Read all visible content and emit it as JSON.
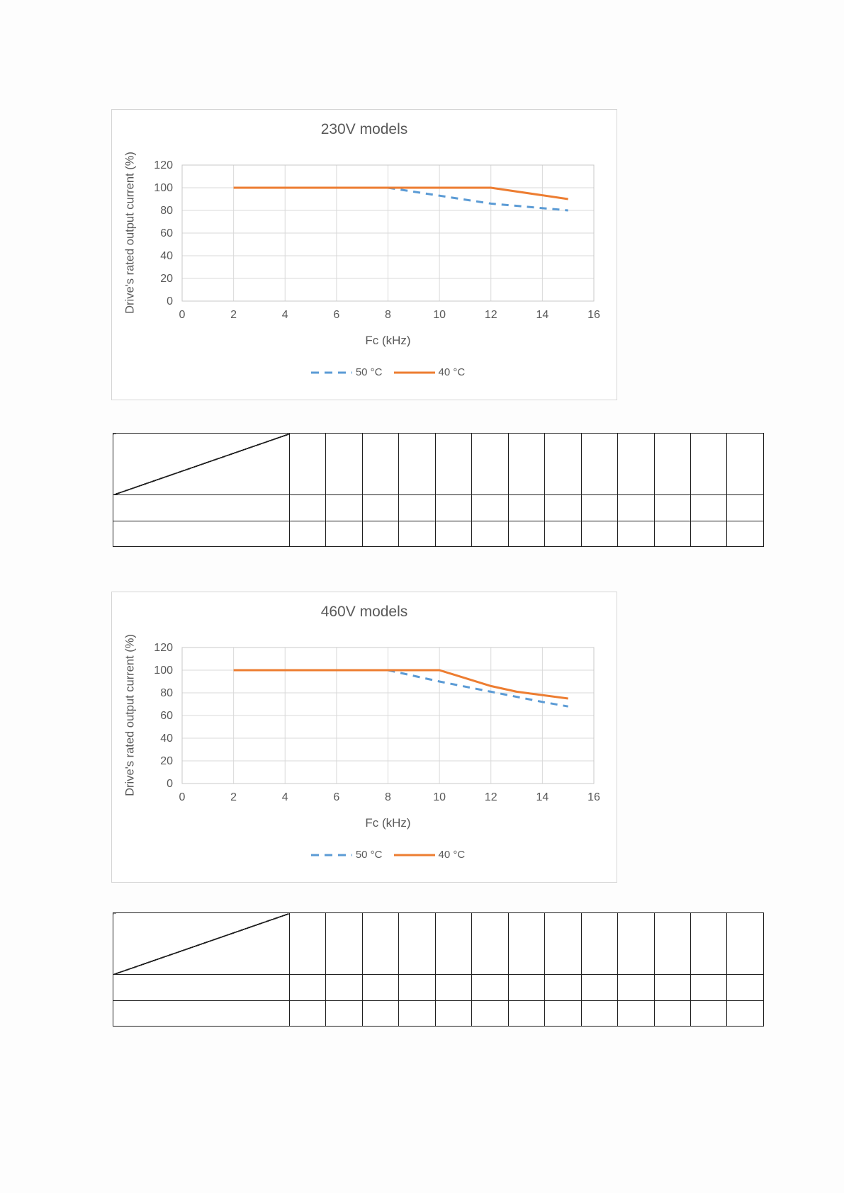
{
  "page": {
    "background": "#fdfdfd",
    "text_color": "#595959",
    "grid_color": "#d9d9d9",
    "table_border_color": "#1f1f1f"
  },
  "chart_data": [
    {
      "type": "line",
      "title": "230V models",
      "xlabel": "Fc (kHz)",
      "ylabel": "Drive's rated output current (%)",
      "xlim": [
        0,
        16
      ],
      "ylim": [
        0,
        120
      ],
      "x_ticks": [
        0,
        2,
        4,
        6,
        8,
        10,
        12,
        14,
        16
      ],
      "y_ticks": [
        0,
        20,
        40,
        60,
        80,
        100,
        120
      ],
      "grid": true,
      "legend_position": "bottom",
      "series": [
        {
          "name": "50 °C",
          "color": "#5B9BD5",
          "line_style": "dashed",
          "points": [
            [
              8,
              100
            ],
            [
              10,
              93
            ],
            [
              12,
              86
            ],
            [
              15,
              80
            ]
          ]
        },
        {
          "name": "40 °C",
          "color": "#ED7D31",
          "line_style": "solid",
          "points": [
            [
              2,
              100
            ],
            [
              12,
              100
            ],
            [
              15,
              90
            ]
          ]
        }
      ]
    },
    {
      "type": "line",
      "title": "460V models",
      "xlabel": "Fc (kHz)",
      "ylabel": "Drive's rated output current (%)",
      "xlim": [
        0,
        16
      ],
      "ylim": [
        0,
        120
      ],
      "x_ticks": [
        0,
        2,
        4,
        6,
        8,
        10,
        12,
        14,
        16
      ],
      "y_ticks": [
        0,
        20,
        40,
        60,
        80,
        100,
        120
      ],
      "grid": true,
      "legend_position": "bottom",
      "series": [
        {
          "name": "50 °C",
          "color": "#5B9BD5",
          "line_style": "dashed",
          "points": [
            [
              8,
              100
            ],
            [
              10,
              90
            ],
            [
              12,
              81
            ],
            [
              14,
              72
            ],
            [
              15,
              68
            ]
          ]
        },
        {
          "name": "40 °C",
          "color": "#ED7D31",
          "line_style": "solid",
          "points": [
            [
              2,
              100
            ],
            [
              10,
              100
            ],
            [
              12,
              86
            ],
            [
              13,
              81
            ],
            [
              15,
              75
            ]
          ]
        }
      ]
    }
  ],
  "tables": [
    {
      "diagonal_header_cell": true,
      "narrow_columns": 13,
      "data_rows": 2,
      "all_cells_empty": true
    },
    {
      "diagonal_header_cell": true,
      "narrow_columns": 13,
      "data_rows": 2,
      "all_cells_empty": true
    }
  ]
}
